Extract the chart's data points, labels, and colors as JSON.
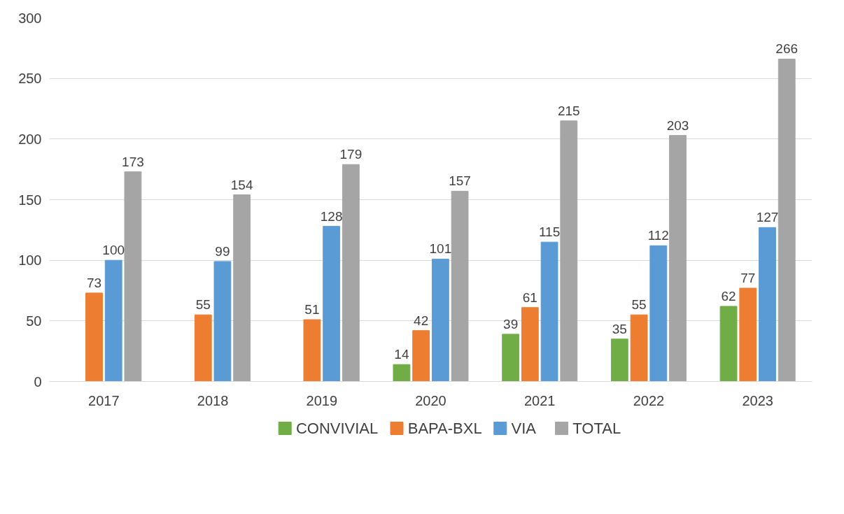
{
  "chart_data": {
    "type": "bar",
    "categories": [
      "2017",
      "2018",
      "2019",
      "2020",
      "2021",
      "2022",
      "2023"
    ],
    "series": [
      {
        "name": "CONVIVIAL",
        "color": "#70ad47",
        "values": [
          null,
          null,
          null,
          14,
          39,
          35,
          62
        ]
      },
      {
        "name": "BAPA-BXL",
        "color": "#ed7d31",
        "values": [
          73,
          55,
          51,
          42,
          61,
          55,
          77
        ]
      },
      {
        "name": "VIA",
        "color": "#5b9bd5",
        "values": [
          100,
          99,
          128,
          101,
          115,
          112,
          127
        ]
      },
      {
        "name": "TOTAL",
        "color": "#a5a5a5",
        "values": [
          173,
          154,
          179,
          157,
          215,
          203,
          266
        ]
      }
    ],
    "ylim": [
      0,
      300
    ],
    "yticks": [
      0,
      50,
      100,
      150,
      200,
      250,
      300
    ],
    "grid": "y",
    "legend": "bottom",
    "data_labels": true
  }
}
